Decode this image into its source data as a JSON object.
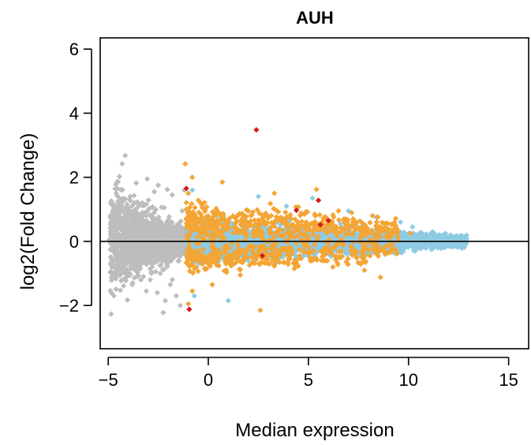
{
  "chart_data": {
    "type": "scatter",
    "title": "AUH",
    "xlabel": "Median expression",
    "ylabel": "log2(Fold Change)",
    "xlim": [
      -5.4,
      16.0
    ],
    "ylim": [
      -3.35,
      6.35
    ],
    "x_ticks": [
      -5,
      0,
      5,
      10,
      15
    ],
    "y_ticks": [
      -2,
      0,
      2,
      4,
      6
    ],
    "x_tick_labels": [
      "−5",
      "0",
      "5",
      "10",
      "15"
    ],
    "y_tick_labels": [
      "−2",
      "0",
      "2",
      "4",
      "6"
    ],
    "reference_line_y": 0,
    "marker": "diamond",
    "colors": {
      "gray": "#bdbdbd",
      "blue": "#8ecbe3",
      "orange": "#f4a534",
      "red": "#d7191c",
      "axis": "#000000"
    },
    "series": [
      {
        "color_key": "gray",
        "points": [
          [
            -4.15,
            2.68
          ],
          [
            -4.3,
            2.42
          ],
          [
            -3.05,
            1.95
          ],
          [
            -3.6,
            1.82
          ],
          [
            -2.5,
            1.75
          ],
          [
            -2.05,
            1.62
          ],
          [
            -2.7,
            1.55
          ],
          [
            -4.6,
            1.5
          ],
          [
            -3.9,
            1.4
          ],
          [
            -1.8,
            1.45
          ],
          [
            -3.3,
            1.2
          ],
          [
            -4.3,
            1.1
          ],
          [
            -2.2,
            1.05
          ],
          [
            -4.8,
            0.85
          ],
          [
            -3.6,
            0.9
          ],
          [
            -1.3,
            0.95
          ],
          [
            -4.5,
            -0.4
          ],
          [
            -3.4,
            -0.85
          ],
          [
            -2.4,
            -1.0
          ],
          [
            -2.9,
            -1.2
          ],
          [
            -1.9,
            -1.35
          ],
          [
            -3.8,
            -1.35
          ],
          [
            -2.55,
            -1.6
          ],
          [
            -1.6,
            -1.7
          ],
          [
            -2.15,
            -1.85
          ],
          [
            -1.4,
            -2.0
          ],
          [
            -2.25,
            -2.22
          ],
          [
            -3.1,
            -1.55
          ],
          [
            -1.8,
            -1.2
          ],
          [
            -4.1,
            -0.9
          ],
          [
            -1.2,
            1.6
          ],
          [
            -4.95,
            0.05
          ],
          [
            -4.7,
            -0.2
          ],
          [
            -4.4,
            0.5
          ]
        ],
        "cloud": {
          "x": [
            -4.9,
            -1.1
          ],
          "y_spread": 0.75,
          "count": 1500
        }
      },
      {
        "color_key": "blue",
        "points": [
          [
            2.5,
            1.4
          ],
          [
            3.9,
            1.1
          ],
          [
            5.2,
            1.35
          ],
          [
            7.0,
            0.95
          ],
          [
            8.4,
            0.75
          ],
          [
            9.6,
            0.6
          ],
          [
            10.2,
            0.45
          ],
          [
            11.2,
            0.3
          ],
          [
            12.1,
            0.2
          ],
          [
            12.8,
            0.05
          ],
          [
            -0.7,
            -1.7
          ],
          [
            1.0,
            -1.85
          ],
          [
            -0.8,
            1.6
          ],
          [
            6.6,
            0.55
          ],
          [
            4.4,
            -0.5
          ],
          [
            9.2,
            -0.3
          ],
          [
            11.7,
            -0.15
          ],
          [
            5.8,
            0.4
          ]
        ],
        "cloud": {
          "x": [
            -1.1,
            12.9
          ],
          "y_spread": 0.32,
          "count": 2600
        }
      },
      {
        "color_key": "orange",
        "points": [
          [
            -1.15,
            2.42
          ],
          [
            -0.8,
            2.0
          ],
          [
            -1.0,
            1.5
          ],
          [
            0.7,
            1.85
          ],
          [
            3.3,
            1.5
          ],
          [
            3.1,
            1.18
          ],
          [
            5.4,
            1.62
          ],
          [
            6.5,
            0.95
          ],
          [
            8.2,
            0.8
          ],
          [
            9.3,
            0.6
          ],
          [
            8.6,
            -1.12
          ],
          [
            7.8,
            -0.9
          ],
          [
            6.4,
            -0.55
          ],
          [
            5.1,
            -0.6
          ],
          [
            2.6,
            -2.15
          ],
          [
            -1.0,
            -1.95
          ],
          [
            -0.8,
            -1.55
          ],
          [
            0.2,
            -1.35
          ],
          [
            0.9,
            -0.9
          ],
          [
            1.6,
            -1.05
          ],
          [
            2.7,
            -0.65
          ],
          [
            4.0,
            -0.55
          ],
          [
            4.8,
            0.85
          ],
          [
            10.1,
            0.25
          ],
          [
            2.0,
            0.95
          ],
          [
            -0.3,
            1.05
          ],
          [
            3.6,
            0.75
          ],
          [
            1.1,
            -0.6
          ]
        ],
        "bands": [
          {
            "x": [
              -1.1,
              9.5
            ],
            "y_center": 0.6,
            "y_spread": 0.3,
            "count": 520
          },
          {
            "x": [
              -1.1,
              9.5
            ],
            "y_center": -0.55,
            "y_spread": 0.25,
            "count": 360
          }
        ]
      },
      {
        "color_key": "red",
        "points": [
          [
            2.4,
            3.48
          ],
          [
            -1.1,
            1.65
          ],
          [
            5.5,
            1.28
          ],
          [
            4.4,
            0.97
          ],
          [
            5.6,
            0.52
          ],
          [
            6.0,
            0.65
          ],
          [
            2.7,
            -0.45
          ],
          [
            -0.95,
            -2.12
          ]
        ]
      }
    ]
  }
}
